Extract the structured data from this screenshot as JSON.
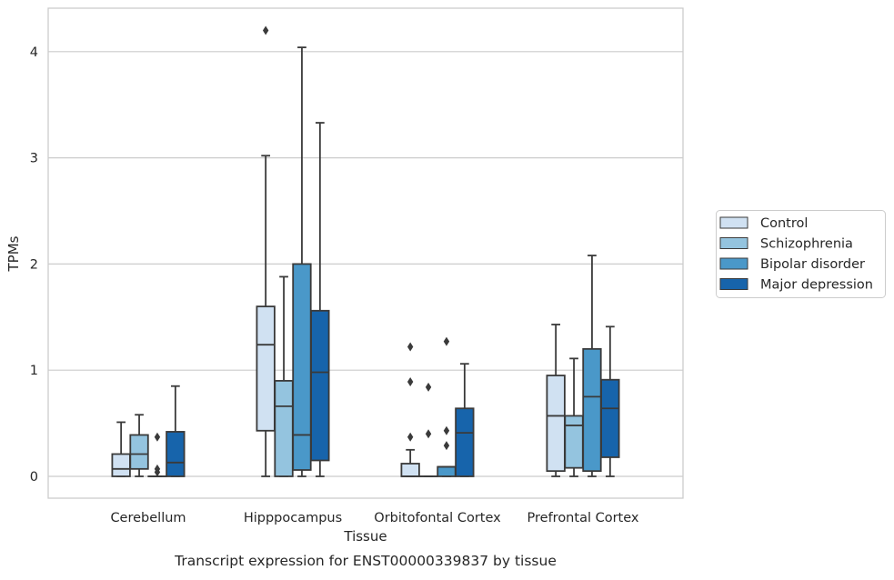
{
  "chart_data": {
    "type": "boxplot",
    "caption": "Transcript expression for ENST00000339837 by tissue",
    "xlabel": "Tissue",
    "ylabel": "TPMs",
    "ylim": [
      -0.2,
      4.4
    ],
    "yticks": [
      0,
      1,
      2,
      3,
      4
    ],
    "grid": "horizontal",
    "legend_position": "right",
    "categories": [
      "Cerebellum",
      "Hipppocampus",
      "Orbitofontal Cortex",
      "Prefrontal Cortex"
    ],
    "series": [
      {
        "name": "Control",
        "color": "#d0e1f2",
        "boxes": [
          {
            "whislo": 0,
            "q1": 0,
            "med": 0.07,
            "q3": 0.21,
            "whishi": 0.51,
            "fliers": []
          },
          {
            "whislo": 0,
            "q1": 0.43,
            "med": 1.24,
            "q3": 1.6,
            "whishi": 3.02,
            "fliers": [
              4.2
            ]
          },
          {
            "whislo": 0,
            "q1": 0,
            "med": 0,
            "q3": 0.12,
            "whishi": 0.25,
            "fliers": [
              0.37,
              0.89,
              1.22
            ]
          },
          {
            "whislo": 0,
            "q1": 0.05,
            "med": 0.57,
            "q3": 0.95,
            "whishi": 1.43,
            "fliers": []
          }
        ]
      },
      {
        "name": "Schizophrenia",
        "color": "#94c4df",
        "boxes": [
          {
            "whislo": 0,
            "q1": 0.07,
            "med": 0.21,
            "q3": 0.39,
            "whishi": 0.58,
            "fliers": []
          },
          {
            "whislo": 0,
            "q1": 0,
            "med": 0.66,
            "q3": 0.9,
            "whishi": 1.88,
            "fliers": []
          },
          {
            "whislo": 0,
            "q1": 0,
            "med": 0,
            "q3": 0,
            "whishi": 0,
            "fliers": [
              0.4,
              0.84
            ]
          },
          {
            "whislo": 0,
            "q1": 0.08,
            "med": 0.48,
            "q3": 0.57,
            "whishi": 1.11,
            "fliers": []
          }
        ]
      },
      {
        "name": "Bipolar disorder",
        "color": "#4a98c9",
        "boxes": [
          {
            "whislo": 0,
            "q1": 0,
            "med": 0,
            "q3": 0,
            "whishi": 0,
            "fliers": [
              0.04,
              0.07,
              0.37
            ]
          },
          {
            "whislo": 0,
            "q1": 0.06,
            "med": 0.39,
            "q3": 2.0,
            "whishi": 4.04,
            "fliers": []
          },
          {
            "whislo": 0,
            "q1": 0,
            "med": 0.09,
            "q3": 0.09,
            "whishi": 0.09,
            "fliers": [
              0.29,
              0.43,
              1.27
            ]
          },
          {
            "whislo": 0,
            "q1": 0.05,
            "med": 0.75,
            "q3": 1.2,
            "whishi": 2.08,
            "fliers": []
          }
        ]
      },
      {
        "name": "Major depression",
        "color": "#1764ab",
        "boxes": [
          {
            "whislo": 0,
            "q1": 0,
            "med": 0.13,
            "q3": 0.42,
            "whishi": 0.85,
            "fliers": []
          },
          {
            "whislo": 0,
            "q1": 0.15,
            "med": 0.98,
            "q3": 1.56,
            "whishi": 3.33,
            "fliers": []
          },
          {
            "whislo": 0,
            "q1": 0,
            "med": 0.41,
            "q3": 0.64,
            "whishi": 1.06,
            "fliers": []
          },
          {
            "whislo": 0,
            "q1": 0.18,
            "med": 0.64,
            "q3": 0.91,
            "whishi": 1.41,
            "fliers": []
          }
        ]
      }
    ]
  }
}
